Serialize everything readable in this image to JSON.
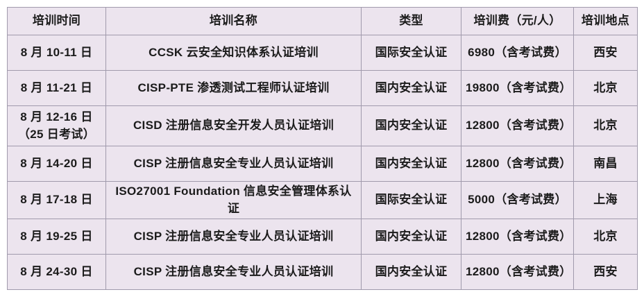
{
  "colors": {
    "page_background": "#ffffff",
    "cell_background": "#ece4ee",
    "border": "#a09aac",
    "text": "#1b1b1b"
  },
  "table": {
    "columns": [
      {
        "key": "time",
        "label": "培训时间"
      },
      {
        "key": "name",
        "label": "培训名称"
      },
      {
        "key": "type",
        "label": "类型"
      },
      {
        "key": "fee",
        "label": "培训费（元/人）"
      },
      {
        "key": "location",
        "label": "培训地点"
      }
    ],
    "rows": [
      {
        "time": "8 月 10-11 日",
        "name": "CCSK 云安全知识体系认证培训",
        "type": "国际安全认证",
        "fee": "6980（含考试费）",
        "location": "西安"
      },
      {
        "time": "8 月 11-21 日",
        "name": "CISP-PTE 渗透测试工程师认证培训",
        "type": "国内安全认证",
        "fee": "19800（含考试费）",
        "location": "北京"
      },
      {
        "time": "8 月 12-16 日\n（25 日考试）",
        "name": "CISD 注册信息安全开发人员认证培训",
        "type": "国内安全认证",
        "fee": "12800（含考试费）",
        "location": "北京"
      },
      {
        "time": "8 月 14-20 日",
        "name": "CISP 注册信息安全专业人员认证培训",
        "type": "国内安全认证",
        "fee": "12800（含考试费）",
        "location": "南昌"
      },
      {
        "time": "8 月 17-18 日",
        "name": "ISO27001 Foundation 信息安全管理体系认证",
        "type": "国际安全认证",
        "fee": "5000（含考试费）",
        "location": "上海"
      },
      {
        "time": "8 月 19-25 日",
        "name": "CISP 注册信息安全专业人员认证培训",
        "type": "国内安全认证",
        "fee": "12800（含考试费）",
        "location": "北京"
      },
      {
        "time": "8 月 24-30 日",
        "name": "CISP 注册信息安全专业人员认证培训",
        "type": "国内安全认证",
        "fee": "12800（含考试费）",
        "location": "西安"
      }
    ]
  }
}
